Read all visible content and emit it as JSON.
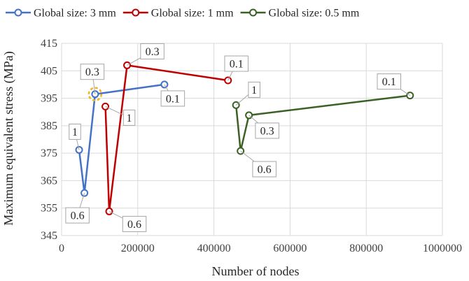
{
  "chart_data": {
    "type": "line",
    "xlabel": "Number of nodes",
    "ylabel": "Maximum equivalent stress (MPa)",
    "xlim": [
      0,
      1000000
    ],
    "ylim": [
      345,
      415
    ],
    "xticks": [
      0,
      200000,
      400000,
      600000,
      800000,
      1000000
    ],
    "xtick_labels": [
      "0",
      "200000",
      "400000",
      "600000",
      "800000",
      "1000000"
    ],
    "yticks": [
      345,
      355,
      365,
      375,
      385,
      395,
      405,
      415
    ],
    "ytick_labels": [
      "345",
      "355",
      "365",
      "375",
      "385",
      "395",
      "405",
      "415"
    ],
    "grid": "vertical and horizontal",
    "legend": "top",
    "highlight": {
      "series": 0,
      "point": 2,
      "color": "#f2b31b"
    },
    "series": [
      {
        "name": "Global size: 3 mm",
        "color": "#4472c4",
        "points": [
          {
            "x": 46000,
            "y": 376.2,
            "label": "1"
          },
          {
            "x": 60000,
            "y": 360.5,
            "label": "0.6"
          },
          {
            "x": 88000,
            "y": 396.5,
            "label": "0.3"
          },
          {
            "x": 270000,
            "y": 400.0,
            "label": "0.1"
          }
        ]
      },
      {
        "name": "Global size: 1 mm",
        "color": "#c00000",
        "points": [
          {
            "x": 115000,
            "y": 392.0,
            "label": "1"
          },
          {
            "x": 125000,
            "y": 353.8,
            "label": "0.6"
          },
          {
            "x": 172000,
            "y": 407.0,
            "label": "0.3"
          },
          {
            "x": 437000,
            "y": 401.5,
            "label": "0.1"
          }
        ]
      },
      {
        "name": "Global size: 0.5 mm",
        "color": "#3b6124",
        "points": [
          {
            "x": 458000,
            "y": 392.5,
            "label": "1"
          },
          {
            "x": 470000,
            "y": 375.8,
            "label": "0.6"
          },
          {
            "x": 492000,
            "y": 388.8,
            "label": "0.3"
          },
          {
            "x": 915000,
            "y": 396.0,
            "label": "0.1"
          }
        ]
      }
    ]
  }
}
